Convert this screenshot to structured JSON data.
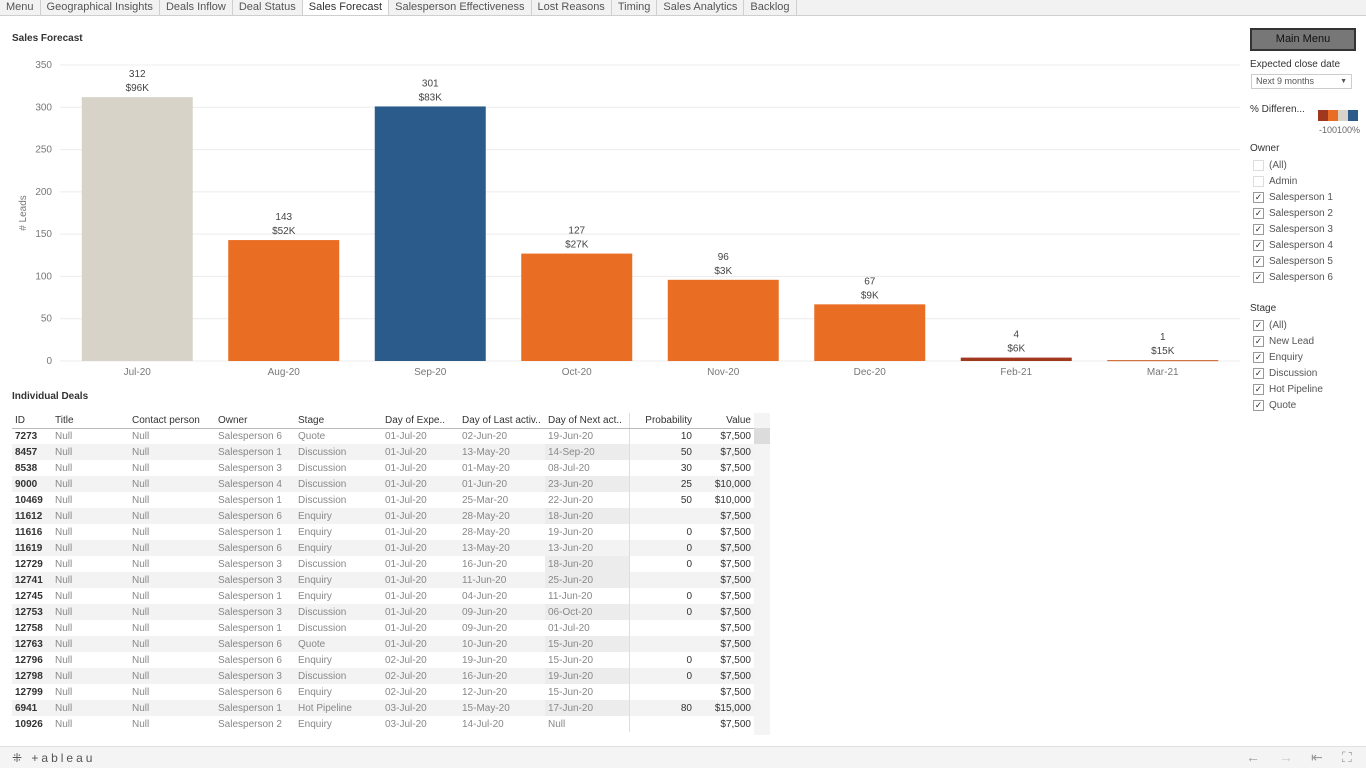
{
  "tabs": [
    "Menu",
    "Geographical Insights",
    "Deals Inflow",
    "Deal Status",
    "Sales Forecast",
    "Salesperson Effectiveness",
    "Lost Reasons",
    "Timing",
    "Sales Analytics",
    "Backlog"
  ],
  "active_tab": "Sales Forecast",
  "chart_title": "Sales Forecast",
  "table_title": "Individual Deals",
  "chart_data": {
    "type": "bar",
    "title": "Sales Forecast",
    "ylabel": "# Leads",
    "xlabel": "",
    "ylim": [
      0,
      350
    ],
    "yticks": [
      0,
      50,
      100,
      150,
      200,
      250,
      300,
      350
    ],
    "grid": true,
    "categories": [
      "Jul-20",
      "Aug-20",
      "Sep-20",
      "Oct-20",
      "Nov-20",
      "Dec-20",
      "Feb-21",
      "Mar-21"
    ],
    "values": [
      312,
      143,
      301,
      127,
      96,
      67,
      4,
      1
    ],
    "value_labels": [
      "$96K",
      "$52K",
      "$83K",
      "$27K",
      "$3K",
      "$9K",
      "$6K",
      "$15K"
    ],
    "colors": [
      "#d7d3c8",
      "#ea6d24",
      "#2b5b8a",
      "#ea6d24",
      "#ea6d24",
      "#ea6d24",
      "#a0381d",
      "#c9591e"
    ]
  },
  "table": {
    "headers": [
      "ID",
      "Title",
      "Contact person",
      "Owner",
      "Stage",
      "Day of Expe..",
      "Day of Last activ..",
      "Day of Next act..",
      "Probability",
      "Value"
    ],
    "rows": [
      [
        "7273",
        "Null",
        "Null",
        "Salesperson 6",
        "Quote",
        "01-Jul-20",
        "02-Jun-20",
        "19-Jun-20",
        "10",
        "$7,500"
      ],
      [
        "8457",
        "Null",
        "Null",
        "Salesperson 1",
        "Discussion",
        "01-Jul-20",
        "13-May-20",
        "14-Sep-20",
        "50",
        "$7,500"
      ],
      [
        "8538",
        "Null",
        "Null",
        "Salesperson 3",
        "Discussion",
        "01-Jul-20",
        "01-May-20",
        "08-Jul-20",
        "30",
        "$7,500"
      ],
      [
        "9000",
        "Null",
        "Null",
        "Salesperson 4",
        "Discussion",
        "01-Jul-20",
        "01-Jun-20",
        "23-Jun-20",
        "25",
        "$10,000"
      ],
      [
        "10469",
        "Null",
        "Null",
        "Salesperson 1",
        "Discussion",
        "01-Jul-20",
        "25-Mar-20",
        "22-Jun-20",
        "50",
        "$10,000"
      ],
      [
        "11612",
        "Null",
        "Null",
        "Salesperson 6",
        "Enquiry",
        "01-Jul-20",
        "28-May-20",
        "18-Jun-20",
        "",
        "$7,500"
      ],
      [
        "11616",
        "Null",
        "Null",
        "Salesperson 1",
        "Enquiry",
        "01-Jul-20",
        "28-May-20",
        "19-Jun-20",
        "0",
        "$7,500"
      ],
      [
        "11619",
        "Null",
        "Null",
        "Salesperson 6",
        "Enquiry",
        "01-Jul-20",
        "13-May-20",
        "13-Jun-20",
        "0",
        "$7,500"
      ],
      [
        "12729",
        "Null",
        "Null",
        "Salesperson 3",
        "Discussion",
        "01-Jul-20",
        "16-Jun-20",
        "18-Jun-20",
        "0",
        "$7,500"
      ],
      [
        "12741",
        "Null",
        "Null",
        "Salesperson 3",
        "Enquiry",
        "01-Jul-20",
        "11-Jun-20",
        "25-Jun-20",
        "",
        "$7,500"
      ],
      [
        "12745",
        "Null",
        "Null",
        "Salesperson 1",
        "Enquiry",
        "01-Jul-20",
        "04-Jun-20",
        "11-Jun-20",
        "0",
        "$7,500"
      ],
      [
        "12753",
        "Null",
        "Null",
        "Salesperson 3",
        "Discussion",
        "01-Jul-20",
        "09-Jun-20",
        "06-Oct-20",
        "0",
        "$7,500"
      ],
      [
        "12758",
        "Null",
        "Null",
        "Salesperson 1",
        "Discussion",
        "01-Jul-20",
        "09-Jun-20",
        "01-Jul-20",
        "",
        "$7,500"
      ],
      [
        "12763",
        "Null",
        "Null",
        "Salesperson 6",
        "Quote",
        "01-Jul-20",
        "10-Jun-20",
        "15-Jun-20",
        "",
        "$7,500"
      ],
      [
        "12796",
        "Null",
        "Null",
        "Salesperson 6",
        "Enquiry",
        "02-Jul-20",
        "19-Jun-20",
        "15-Jun-20",
        "0",
        "$7,500"
      ],
      [
        "12798",
        "Null",
        "Null",
        "Salesperson 3",
        "Discussion",
        "02-Jul-20",
        "16-Jun-20",
        "19-Jun-20",
        "0",
        "$7,500"
      ],
      [
        "12799",
        "Null",
        "Null",
        "Salesperson 6",
        "Enquiry",
        "02-Jul-20",
        "12-Jun-20",
        "15-Jun-20",
        "",
        "$7,500"
      ],
      [
        "6941",
        "Null",
        "Null",
        "Salesperson 1",
        "Hot Pipeline",
        "03-Jul-20",
        "15-May-20",
        "17-Jun-20",
        "80",
        "$15,000"
      ],
      [
        "10926",
        "Null",
        "Null",
        "Salesperson 2",
        "Enquiry",
        "03-Jul-20",
        "14-Jul-20",
        "Null",
        "",
        "$7,500"
      ]
    ]
  },
  "panel": {
    "main_menu_label": "Main Menu",
    "expected_close_label": "Expected close date",
    "expected_close_value": "Next 9 months",
    "pct_diff_label": "% Differen...",
    "pct_diff_min": "-100",
    "pct_diff_max": "100%",
    "legend_colors": [
      "#a0381d",
      "#ea6d24",
      "#d7d3c8",
      "#2b5b8a"
    ],
    "owner_label": "Owner",
    "owner_items": [
      {
        "label": "(All)",
        "checked": false
      },
      {
        "label": "Admin",
        "checked": false
      },
      {
        "label": "Salesperson 1",
        "checked": true
      },
      {
        "label": "Salesperson 2",
        "checked": true
      },
      {
        "label": "Salesperson 3",
        "checked": true
      },
      {
        "label": "Salesperson 4",
        "checked": true
      },
      {
        "label": "Salesperson 5",
        "checked": true
      },
      {
        "label": "Salesperson 6",
        "checked": true
      }
    ],
    "stage_label": "Stage",
    "stage_items": [
      {
        "label": "(All)",
        "checked": true
      },
      {
        "label": "New Lead",
        "checked": true
      },
      {
        "label": "Enquiry",
        "checked": true
      },
      {
        "label": "Discussion",
        "checked": true
      },
      {
        "label": "Hot Pipeline",
        "checked": true
      },
      {
        "label": "Quote",
        "checked": true
      }
    ]
  },
  "footer": {
    "logo_text": "+ableau",
    "icons": [
      "back-arrow-icon",
      "forward-arrow-icon",
      "first-page-icon",
      "fullscreen-icon"
    ]
  }
}
